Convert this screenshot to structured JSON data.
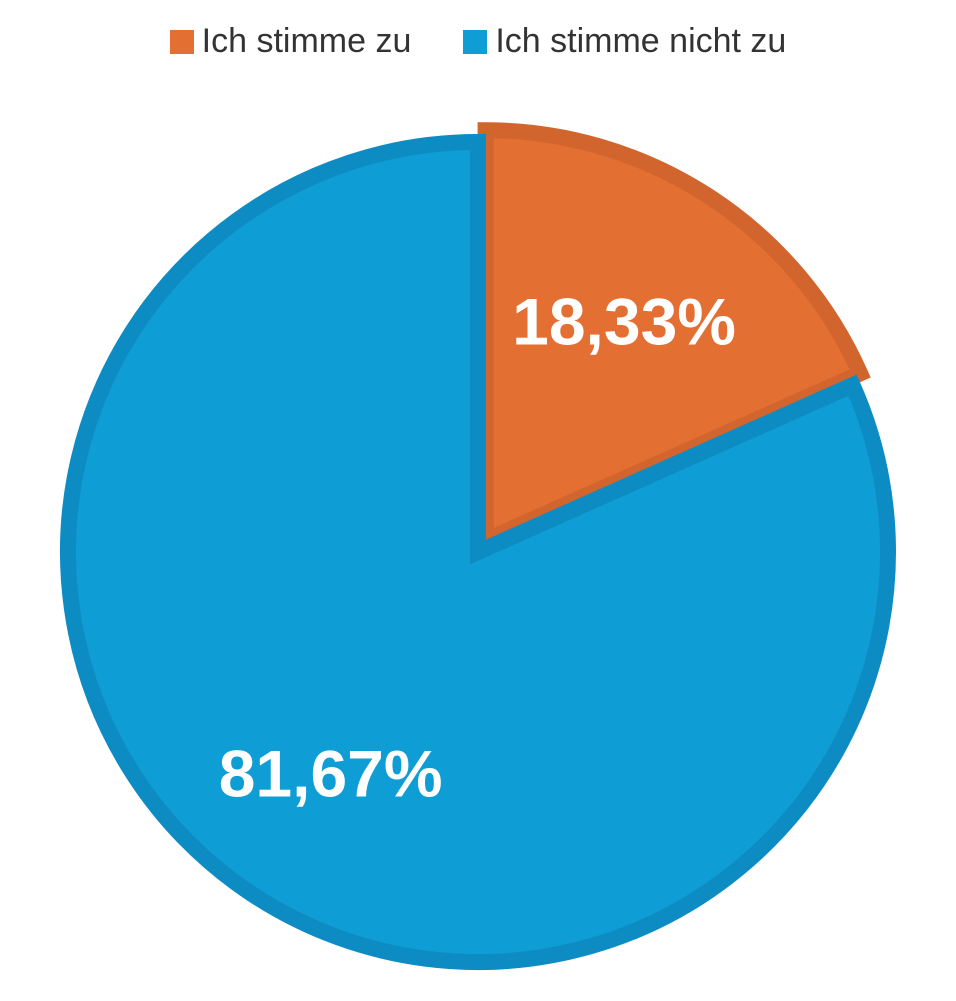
{
  "chart_data": {
    "type": "pie",
    "series": [
      {
        "name": "Ich stimme zu",
        "value": 18.33,
        "label": "18,33%",
        "color": "#E46F33",
        "border": "#D2652E"
      },
      {
        "name": "Ich stimme nicht zu",
        "value": 81.67,
        "label": "81,67%",
        "color": "#0E9DD4",
        "border": "#0D8CC3"
      }
    ],
    "legend_position": "top"
  }
}
